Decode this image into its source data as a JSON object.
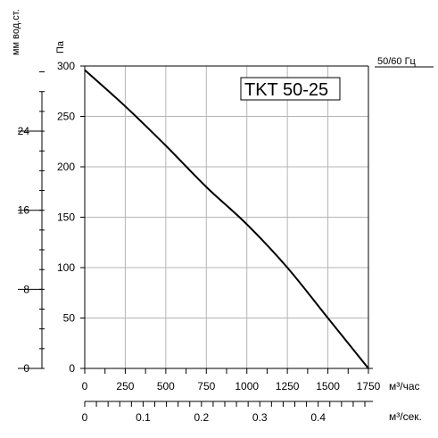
{
  "chart_data": {
    "type": "line",
    "title": "TKT 50-25",
    "frequency_label": "50/60 Гц",
    "ylabel_pa": "Па",
    "ylabel_mm": "мм вод.ст.",
    "xlabel_m3h": "м³/час",
    "xlabel_m3s": "м³/сек.",
    "xlim": [
      0,
      1750
    ],
    "ylim": [
      0,
      300
    ],
    "x_ticks": [
      "0",
      "250",
      "500",
      "750",
      "1000",
      "1250",
      "1500",
      "1750"
    ],
    "y_ticks": [
      "0",
      "50",
      "100",
      "150",
      "200",
      "250",
      "300"
    ],
    "mm_ticks": [
      "0",
      "8",
      "16",
      "24"
    ],
    "m3s_ticks": [
      "0",
      "0.1",
      "0.2",
      "0.3",
      "0.4"
    ],
    "grid": true,
    "series": [
      {
        "x": [
          0,
          250,
          500,
          750,
          1000,
          1250,
          1500,
          1750
        ],
        "y": [
          296,
          260,
          221,
          180,
          143,
          100,
          50,
          0
        ]
      }
    ]
  }
}
